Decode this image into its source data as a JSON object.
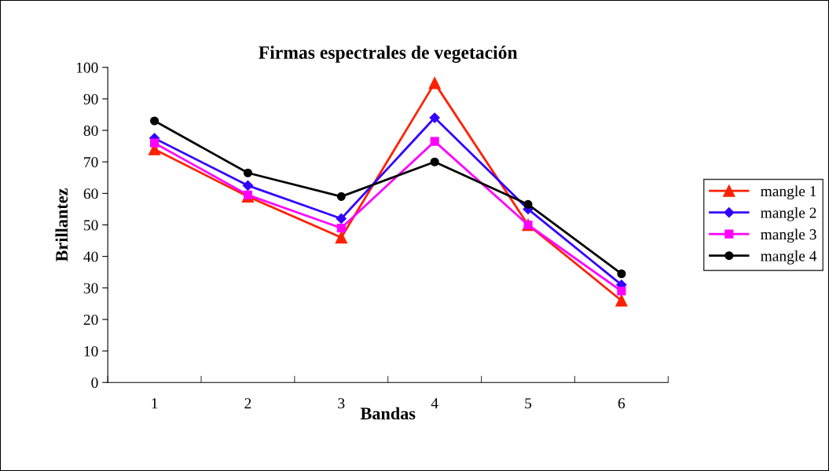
{
  "chart_data": {
    "type": "line",
    "title": "Firmas espectrales de vegetación",
    "xlabel": "Bandas",
    "ylabel": "Brillantez",
    "categories": [
      "1",
      "2",
      "3",
      "4",
      "5",
      "6"
    ],
    "series": [
      {
        "name": "mangle 1",
        "color": "#ff2000",
        "marker": "triangle",
        "values": [
          74,
          59,
          46,
          95,
          50,
          26
        ]
      },
      {
        "name": "mangle 2",
        "color": "#3300ff",
        "marker": "diamond",
        "values": [
          77.5,
          62.5,
          52,
          84,
          55,
          31
        ]
      },
      {
        "name": "mangle 3",
        "color": "#ff00ff",
        "marker": "square",
        "values": [
          76,
          59.5,
          49,
          76.5,
          50,
          29
        ]
      },
      {
        "name": "mangle 4",
        "color": "#000000",
        "marker": "circle",
        "values": [
          83,
          66.5,
          59,
          70,
          56.5,
          34.5
        ]
      }
    ],
    "ylim": [
      0,
      100
    ],
    "yticks": [
      0,
      10,
      20,
      30,
      40,
      50,
      60,
      70,
      80,
      90,
      100
    ],
    "grid": false,
    "legend": "right",
    "line_style": "solid"
  }
}
